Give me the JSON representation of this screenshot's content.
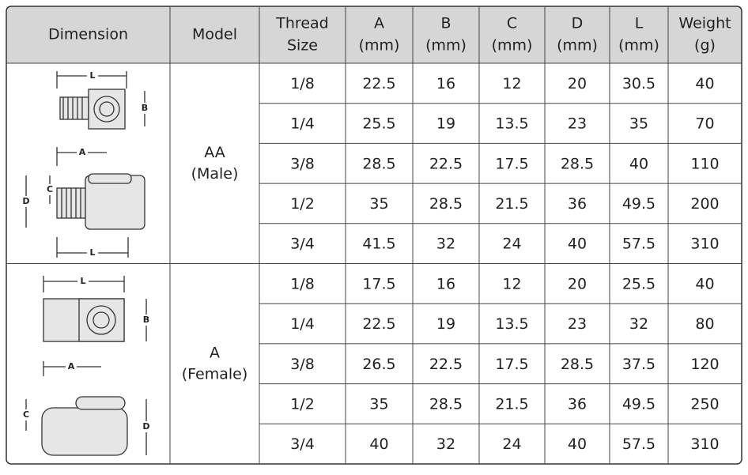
{
  "header": [
    [
      "Dimension"
    ],
    [
      "Model"
    ],
    [
      "Thread",
      "Size"
    ],
    [
      "A",
      "(mm)"
    ],
    [
      "B",
      "(mm)"
    ],
    [
      "C",
      "(mm)"
    ],
    [
      "D",
      "(mm)"
    ],
    [
      "L",
      "(mm)"
    ],
    [
      "Weight",
      "(g)"
    ]
  ],
  "groups": [
    {
      "model": [
        "AA",
        "(Male)"
      ],
      "drawing_labels": [
        "L",
        "B",
        "A",
        "C",
        "D",
        "L"
      ],
      "rows": [
        [
          "1/8",
          "22.5",
          "16",
          "12",
          "20",
          "30.5",
          "40"
        ],
        [
          "1/4",
          "25.5",
          "19",
          "13.5",
          "23",
          "35",
          "70"
        ],
        [
          "3/8",
          "28.5",
          "22.5",
          "17.5",
          "28.5",
          "40",
          "110"
        ],
        [
          "1/2",
          "35",
          "28.5",
          "21.5",
          "36",
          "49.5",
          "200"
        ],
        [
          "3/4",
          "41.5",
          "32",
          "24",
          "40",
          "57.5",
          "310"
        ]
      ]
    },
    {
      "model": [
        "A",
        "(Female)"
      ],
      "drawing_labels": [
        "L",
        "B",
        "A",
        "C",
        "D"
      ],
      "rows": [
        [
          "1/8",
          "17.5",
          "16",
          "12",
          "20",
          "25.5",
          "40"
        ],
        [
          "1/4",
          "22.5",
          "19",
          "13.5",
          "23",
          "32",
          "80"
        ],
        [
          "3/8",
          "26.5",
          "22.5",
          "17.5",
          "28.5",
          "37.5",
          "120"
        ],
        [
          "1/2",
          "35",
          "28.5",
          "21.5",
          "36",
          "49.5",
          "250"
        ],
        [
          "3/4",
          "40",
          "32",
          "24",
          "40",
          "57.5",
          "310"
        ]
      ]
    }
  ]
}
